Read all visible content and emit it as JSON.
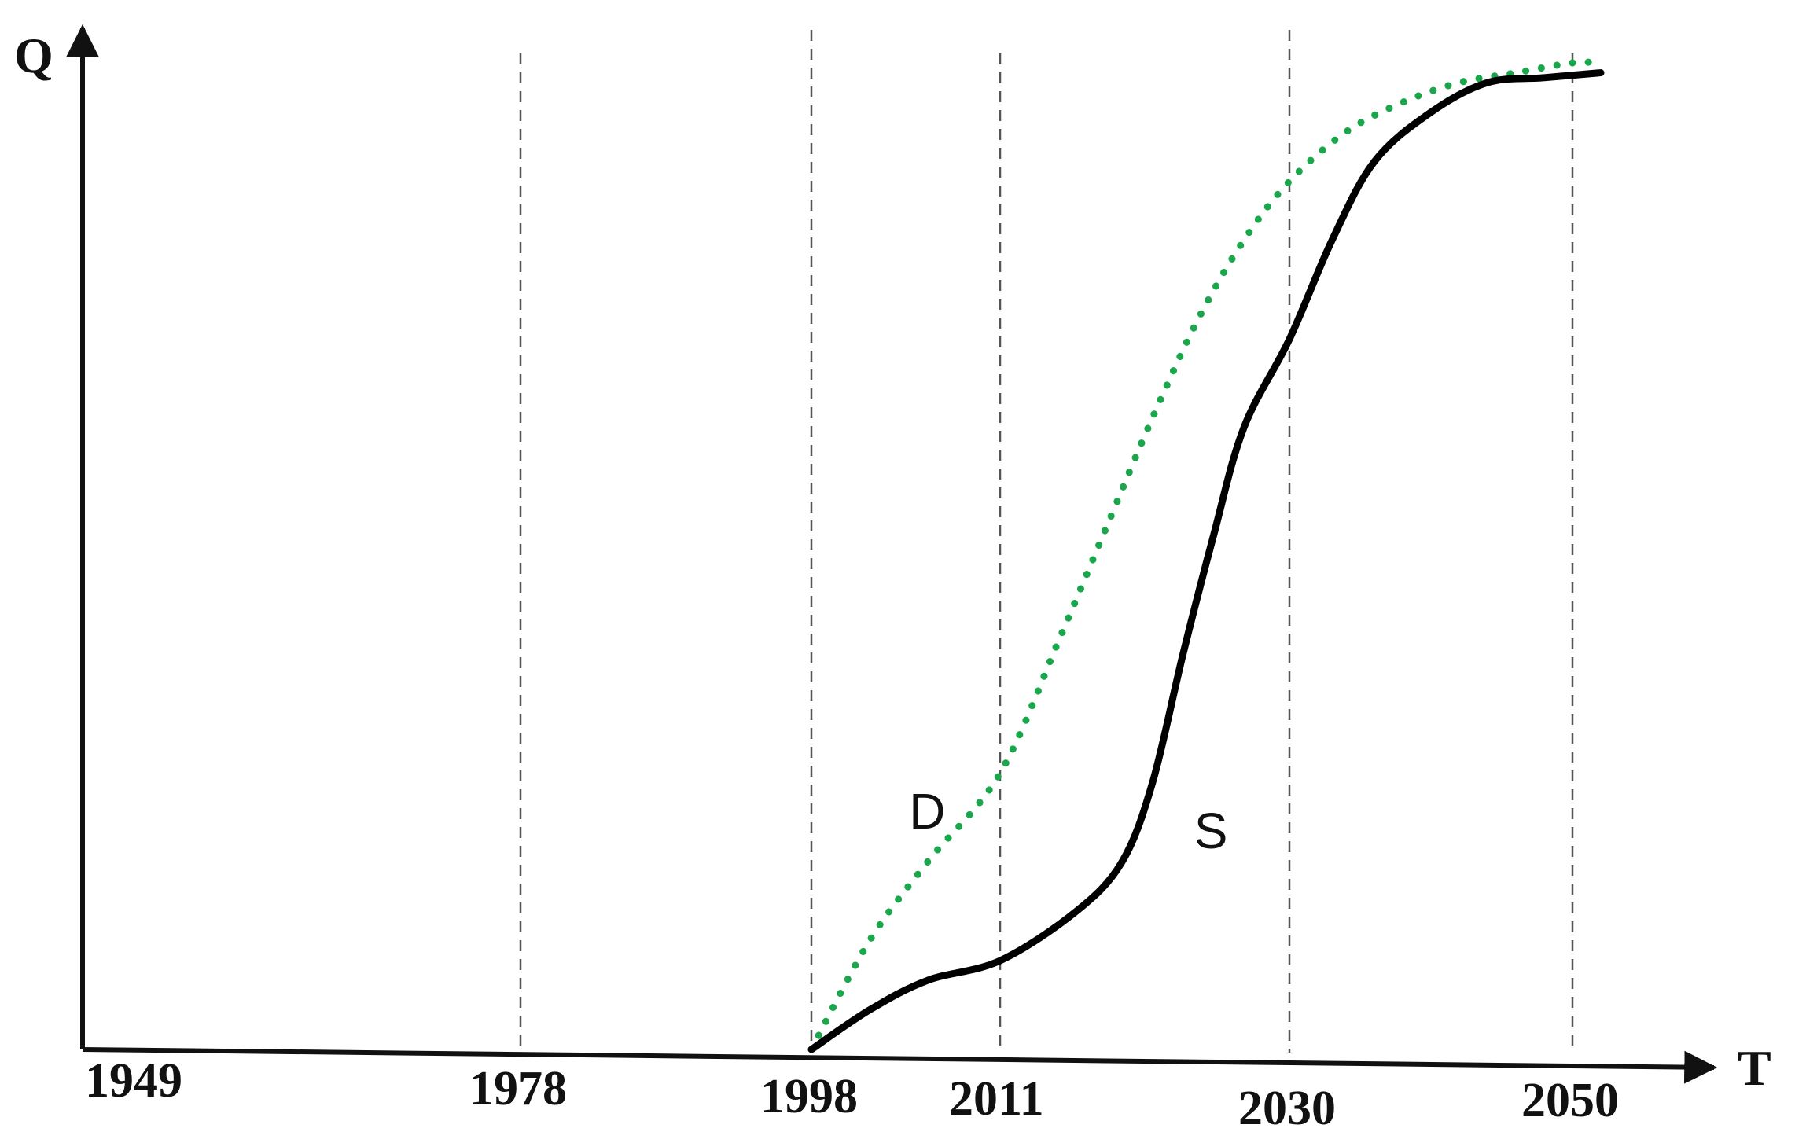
{
  "chart_data": {
    "type": "line",
    "title": "",
    "xlabel": "T",
    "ylabel": "Q",
    "x_ticks": [
      "1949",
      "1978",
      "1998",
      "2011",
      "2030",
      "2050"
    ],
    "xlim": [
      1949,
      2055
    ],
    "ylim": [
      0,
      1
    ],
    "grid": "vertical dashed lines at tick years",
    "legend": "none",
    "series": [
      {
        "name": "D",
        "style": "dotted",
        "color": "#1aa64b",
        "x": [
          1998,
          2002,
          2006,
          2011,
          2015,
          2018,
          2021,
          2024,
          2027,
          2030,
          2034,
          2038,
          2042,
          2046,
          2050,
          2052
        ],
        "y": [
          0.0,
          0.11,
          0.19,
          0.28,
          0.42,
          0.53,
          0.64,
          0.74,
          0.82,
          0.88,
          0.93,
          0.96,
          0.98,
          0.99,
          1.0,
          1.0
        ]
      },
      {
        "name": "S",
        "style": "solid",
        "color": "#000000",
        "x": [
          1998,
          2002,
          2006,
          2011,
          2016,
          2019,
          2021,
          2023,
          2025,
          2027,
          2030,
          2033,
          2036,
          2040,
          2044,
          2048,
          2052
        ],
        "y": [
          0.0,
          0.04,
          0.07,
          0.09,
          0.14,
          0.19,
          0.27,
          0.4,
          0.52,
          0.63,
          0.72,
          0.82,
          0.9,
          0.95,
          0.98,
          0.985,
          0.99
        ]
      }
    ],
    "annotations": [
      {
        "text": "D",
        "x": 2005,
        "y": 0.24
      },
      {
        "text": "S",
        "x": 2024,
        "y": 0.22
      }
    ]
  }
}
